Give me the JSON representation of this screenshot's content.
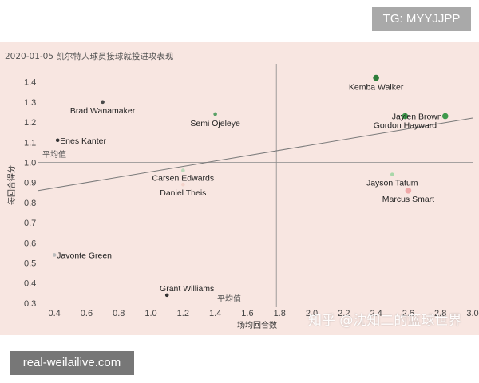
{
  "watermark_top": "TG: MYYJJPP",
  "watermark_bottom": "real-weilailive.com",
  "watermark_zhihu": "知乎 @沈知二的篮球世界",
  "chart_data": {
    "type": "scatter",
    "title": "2020-01-05 凯尔特人球员接球就投进攻表现",
    "xlabel": "场均回合数",
    "ylabel": "每回合得分",
    "xlim": [
      0.3,
      3.0
    ],
    "ylim": [
      0.28,
      1.47
    ],
    "xticks": [
      "0.4",
      "0.6",
      "0.8",
      "1.0",
      "1.2",
      "1.4",
      "1.6",
      "1.8",
      "2.0",
      "2.2",
      "2.4",
      "2.6",
      "2.8",
      "3.0",
      "3.2",
      "3.4",
      "3.6",
      "3.8"
    ],
    "xtick_values": [
      0.4,
      0.6,
      0.8,
      1.0,
      1.2,
      1.4,
      1.6,
      1.8,
      2.0,
      2.2,
      2.4,
      2.6,
      2.8,
      3.0,
      3.2,
      3.4,
      3.6,
      3.8
    ],
    "yticks": [
      "0.3",
      "0.4",
      "0.5",
      "0.6",
      "0.7",
      "0.8",
      "0.9",
      "1.0",
      "1.1",
      "1.2",
      "1.3",
      "1.4"
    ],
    "ytick_values": [
      0.3,
      0.4,
      0.5,
      0.6,
      0.7,
      0.8,
      0.9,
      1.0,
      1.1,
      1.2,
      1.3,
      1.4
    ],
    "avg_x": 1.78,
    "avg_y": 1.0,
    "avg_label_x": "平均值",
    "avg_label_y": "平均值",
    "trend_line": [
      [
        0.3,
        0.86
      ],
      [
        3.0,
        1.22
      ]
    ],
    "grid": false,
    "points": [
      {
        "name": "Kemba Walker",
        "x": 2.4,
        "y": 1.42,
        "color": "#2e7d3a"
      },
      {
        "name": "Jaylen Brown",
        "x": 2.83,
        "y": 1.23,
        "color": "#3f9a4c"
      },
      {
        "name": "Gordon Hayward",
        "x": 2.58,
        "y": 1.23,
        "color": "#3f9a4c"
      },
      {
        "name": "Semi Ojeleye",
        "x": 1.4,
        "y": 1.24,
        "color": "#5aa066"
      },
      {
        "name": "Brad Wanamaker",
        "x": 0.7,
        "y": 1.3,
        "color": "#4a4a4a"
      },
      {
        "name": "Enes Kanter",
        "x": 0.42,
        "y": 1.11,
        "color": "#333333"
      },
      {
        "name": "Carsen Edwards",
        "x": 1.2,
        "y": 0.96,
        "color": "#b9d8b9"
      },
      {
        "name": "Daniel Theis",
        "x": 1.2,
        "y": 0.89,
        "color": "#f3d4cc"
      },
      {
        "name": "Jayson Tatum",
        "x": 2.5,
        "y": 0.94,
        "color": "#a9d7a9"
      },
      {
        "name": "Marcus Smart",
        "x": 2.6,
        "y": 0.86,
        "color": "#f0a8a8"
      },
      {
        "name": "Javonte Green",
        "x": 0.4,
        "y": 0.54,
        "color": "#bbbbbb"
      },
      {
        "name": "Grant Williams",
        "x": 1.1,
        "y": 0.34,
        "color": "#333333"
      }
    ]
  }
}
